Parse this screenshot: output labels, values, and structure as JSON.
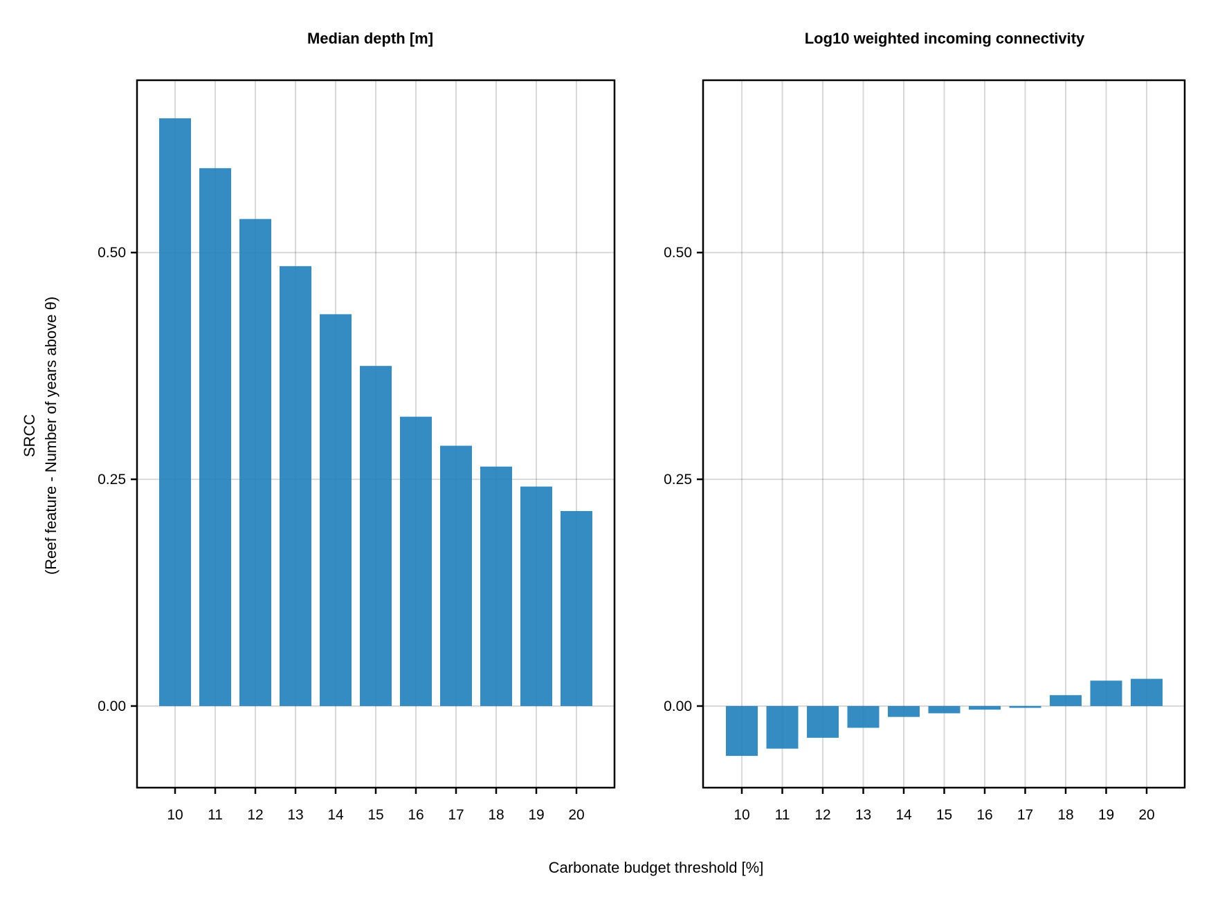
{
  "figure": {
    "shared_ylabel_line1": "SRCC",
    "shared_ylabel_line2": "(Reef feature - Number of years above θ)",
    "shared_xlabel": "Carbonate budget threshold [%]",
    "bar_color": "#1f7fbb"
  },
  "chart_data": [
    {
      "type": "bar",
      "title": "Median depth [m]",
      "xlabel": "Carbonate budget threshold [%]",
      "ylabel": "SRCC (Reef feature - Number of years above θ)",
      "categories": [
        "10",
        "11",
        "12",
        "13",
        "14",
        "15",
        "16",
        "17",
        "18",
        "19",
        "20"
      ],
      "values": [
        0.648,
        0.593,
        0.537,
        0.485,
        0.432,
        0.375,
        0.319,
        0.287,
        0.264,
        0.242,
        0.215
      ],
      "ylim": [
        -0.09,
        0.69
      ],
      "yticks": [
        0.0,
        0.25,
        0.5
      ],
      "ytick_labels": [
        "0.00",
        "0.25",
        "0.50"
      ],
      "grid": true
    },
    {
      "type": "bar",
      "title": "Log10 weighted incoming connectivity",
      "xlabel": "Carbonate budget threshold [%]",
      "ylabel": "SRCC (Reef feature - Number of years above θ)",
      "categories": [
        "10",
        "11",
        "12",
        "13",
        "14",
        "15",
        "16",
        "17",
        "18",
        "19",
        "20"
      ],
      "values": [
        -0.055,
        -0.047,
        -0.035,
        -0.024,
        -0.012,
        -0.008,
        -0.004,
        -0.002,
        0.012,
        0.028,
        0.03
      ],
      "ylim": [
        -0.09,
        0.69
      ],
      "yticks": [
        0.0,
        0.25,
        0.5
      ],
      "ytick_labels": [
        "0.00",
        "0.25",
        "0.50"
      ],
      "grid": true
    }
  ]
}
